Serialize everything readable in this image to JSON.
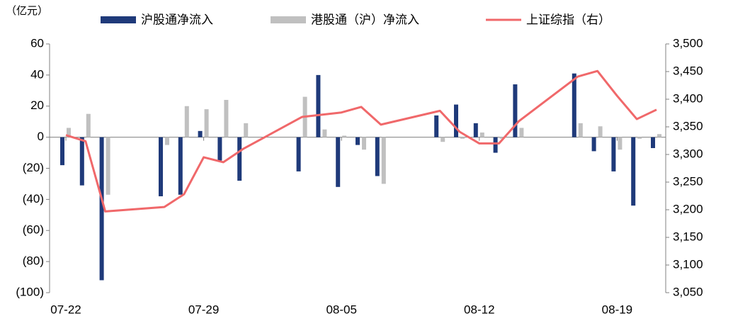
{
  "chart_data": {
    "type": "bar-line",
    "unit_label": "（亿元）",
    "x": [
      "07-22",
      "07-23",
      "07-24",
      "07-27",
      "07-28",
      "07-29",
      "07-30",
      "07-31",
      "08-03",
      "08-04",
      "08-05",
      "08-06",
      "08-07",
      "08-10",
      "08-11",
      "08-12",
      "08-13",
      "08-14",
      "08-17",
      "08-18",
      "08-19",
      "08-20",
      "08-21"
    ],
    "xticks": [
      "07-22",
      "07-29",
      "08-05",
      "08-12",
      "08-19"
    ],
    "series": [
      {
        "name": "沪股通净流入",
        "type": "bar",
        "color": "#1f3a7a",
        "values": [
          -18,
          -31,
          -92,
          -38,
          -37,
          4,
          -15,
          -28,
          -22,
          40,
          -32,
          -5,
          -25,
          14,
          21,
          9,
          -10,
          34,
          41,
          -9,
          -22,
          -44,
          -7
        ]
      },
      {
        "name": "港股通（沪）净流入",
        "type": "bar",
        "color": "#c0c0c0",
        "values": [
          6,
          15,
          -37,
          -5,
          20,
          18,
          24,
          9,
          26,
          5,
          1,
          -8,
          -30,
          -3,
          -1,
          3,
          -1,
          6,
          9,
          7,
          -8,
          -1,
          2
        ]
      },
      {
        "name": "上证综指（右）",
        "type": "line",
        "axis": "y2",
        "color": "#f0686a",
        "values": [
          3335,
          3324,
          3197,
          3205,
          3228,
          3295,
          3286,
          3310,
          3368,
          3372,
          3376,
          3386,
          3354,
          3379,
          3341,
          3320,
          3320,
          3360,
          3441,
          3451,
          3406,
          3364,
          3381
        ]
      }
    ],
    "ylim": [
      -100,
      60
    ],
    "yticks": [
      {
        "value": -100,
        "label": "(100)"
      },
      {
        "value": -80,
        "label": "(80)"
      },
      {
        "value": -60,
        "label": "(60)"
      },
      {
        "value": -40,
        "label": "(40)"
      },
      {
        "value": -20,
        "label": "(20)"
      },
      0,
      20,
      40,
      60
    ],
    "y2lim": [
      3050,
      3500
    ],
    "y2ticks": [
      {
        "value": 3050,
        "label": "3,050"
      },
      {
        "value": 3100,
        "label": "3,100"
      },
      {
        "value": 3150,
        "label": "3,150"
      },
      {
        "value": 3200,
        "label": "3,200"
      },
      {
        "value": 3250,
        "label": "3,250"
      },
      {
        "value": 3300,
        "label": "3,300"
      },
      {
        "value": 3350,
        "label": "3,350"
      },
      {
        "value": 3400,
        "label": "3,400"
      },
      {
        "value": 3450,
        "label": "3,450"
      },
      {
        "value": 3500,
        "label": "3,500"
      }
    ]
  }
}
